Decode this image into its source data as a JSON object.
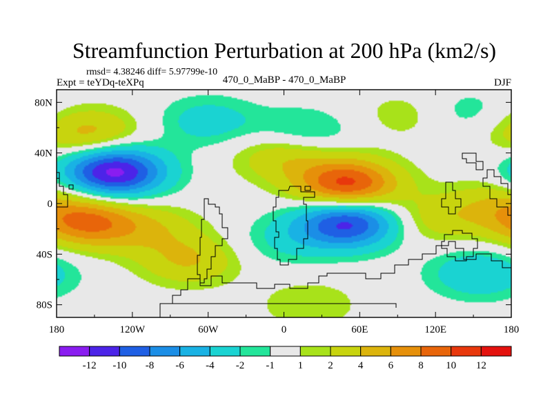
{
  "chart_data": {
    "type": "heatmap",
    "title": "Streamfunction Perturbation at 200 hPa (km2/s)",
    "stats_label": "rmsd= 4.38246  diff= 5.97799e-10",
    "expt_label": "Expt = teYDq-teXPq",
    "center_label": "470_0_MaBP - 470_0_MaBP",
    "season_label": "DJF",
    "xlim": [
      -180,
      180
    ],
    "ylim": [
      -90,
      90
    ],
    "x_ticks": [
      {
        "value": -180,
        "label": "180"
      },
      {
        "value": -120,
        "label": "120W"
      },
      {
        "value": -60,
        "label": "60W"
      },
      {
        "value": 0,
        "label": "0"
      },
      {
        "value": 60,
        "label": "60E"
      },
      {
        "value": 120,
        "label": "120E"
      },
      {
        "value": 180,
        "label": "180"
      }
    ],
    "y_ticks": [
      {
        "value": 80,
        "label": "80N"
      },
      {
        "value": 40,
        "label": "40N"
      },
      {
        "value": 0,
        "label": "0"
      },
      {
        "value": -40,
        "label": "40S"
      },
      {
        "value": -80,
        "label": "80S"
      }
    ],
    "colorbar": {
      "colors": [
        "#8a1df0",
        "#4c24e8",
        "#1f5fe4",
        "#1b8ee6",
        "#19b2e4",
        "#1ad3d2",
        "#23e59a",
        "#e8e8e8",
        "#a8e21a",
        "#c8d40e",
        "#dcb40c",
        "#e6900a",
        "#e8650a",
        "#e8380c",
        "#e4120e"
      ],
      "labels": [
        "-12",
        "-10",
        "-8",
        "-6",
        "-4",
        "-2",
        "-1",
        "1",
        "2",
        "4",
        "6",
        "8",
        "10",
        "12"
      ],
      "levels": [
        -12,
        -10,
        -8,
        -6,
        -4,
        -2,
        -1,
        1,
        2,
        4,
        6,
        8,
        10,
        12
      ]
    },
    "anomaly_centers": [
      {
        "lon": -135,
        "lat": 25,
        "value": -13
      },
      {
        "lon": 50,
        "lat": -15,
        "value": -11
      },
      {
        "lon": 50,
        "lat": 15,
        "value": 11
      },
      {
        "lon": -155,
        "lat": -15,
        "value": 8
      },
      {
        "lon": -155,
        "lat": 55,
        "value": 5
      },
      {
        "lon": -60,
        "lat": 65,
        "value": -3
      },
      {
        "lon": 15,
        "lat": 55,
        "value": -3
      },
      {
        "lon": 155,
        "lat": -55,
        "value": -4
      },
      {
        "lon": -75,
        "lat": -45,
        "value": 4
      },
      {
        "lon": 120,
        "lat": -12,
        "value": 3
      },
      {
        "lon": -105,
        "lat": -20,
        "value": 3
      },
      {
        "lon": 100,
        "lat": 70,
        "value": 2
      },
      {
        "lon": 140,
        "lat": 72,
        "value": -2
      },
      {
        "lon": 0,
        "lat": -30,
        "value": -2
      },
      {
        "lon": 170,
        "lat": 0,
        "value": 3
      },
      {
        "lon": 0,
        "lat": 38,
        "value": 4
      },
      {
        "lon": 20,
        "lat": -80,
        "value": 2
      }
    ]
  }
}
